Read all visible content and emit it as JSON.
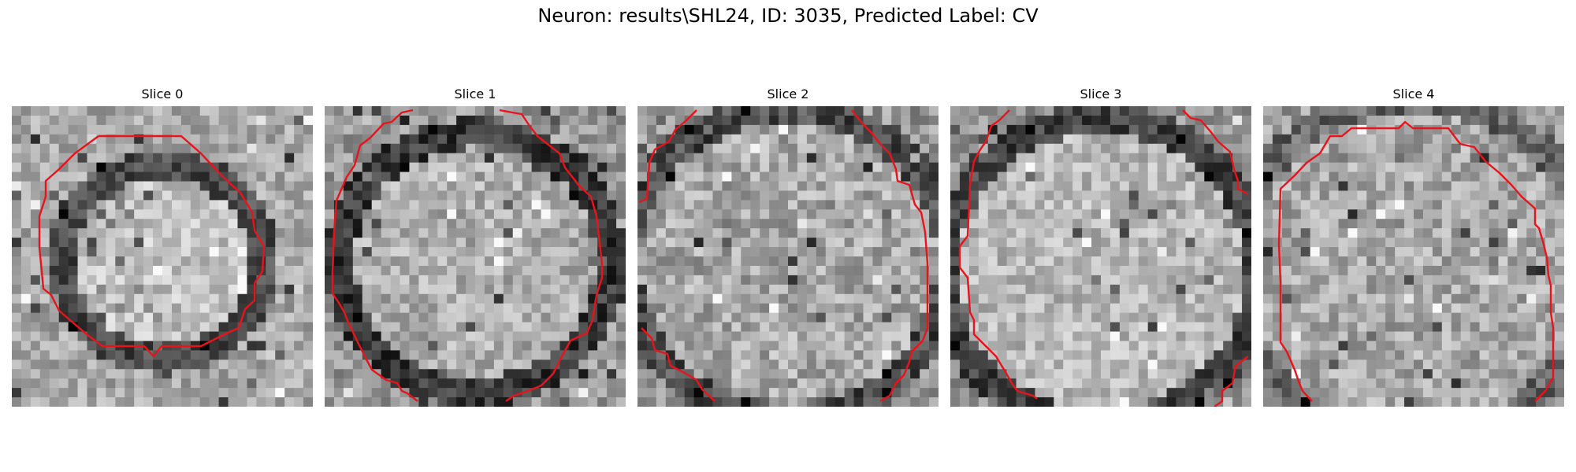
{
  "figure": {
    "title": "Neuron: results\\SHL24, ID: 3035, Predicted Label: CV"
  },
  "panels": [
    {
      "title": "Slice 0"
    },
    {
      "title": "Slice 1"
    },
    {
      "title": "Slice 2"
    },
    {
      "title": "Slice 3"
    },
    {
      "title": "Slice 4"
    }
  ],
  "colors": {
    "contour": "#e8141c",
    "background": "#ffffff"
  },
  "image": {
    "grid_size": 32,
    "colormap": "grayscale"
  }
}
